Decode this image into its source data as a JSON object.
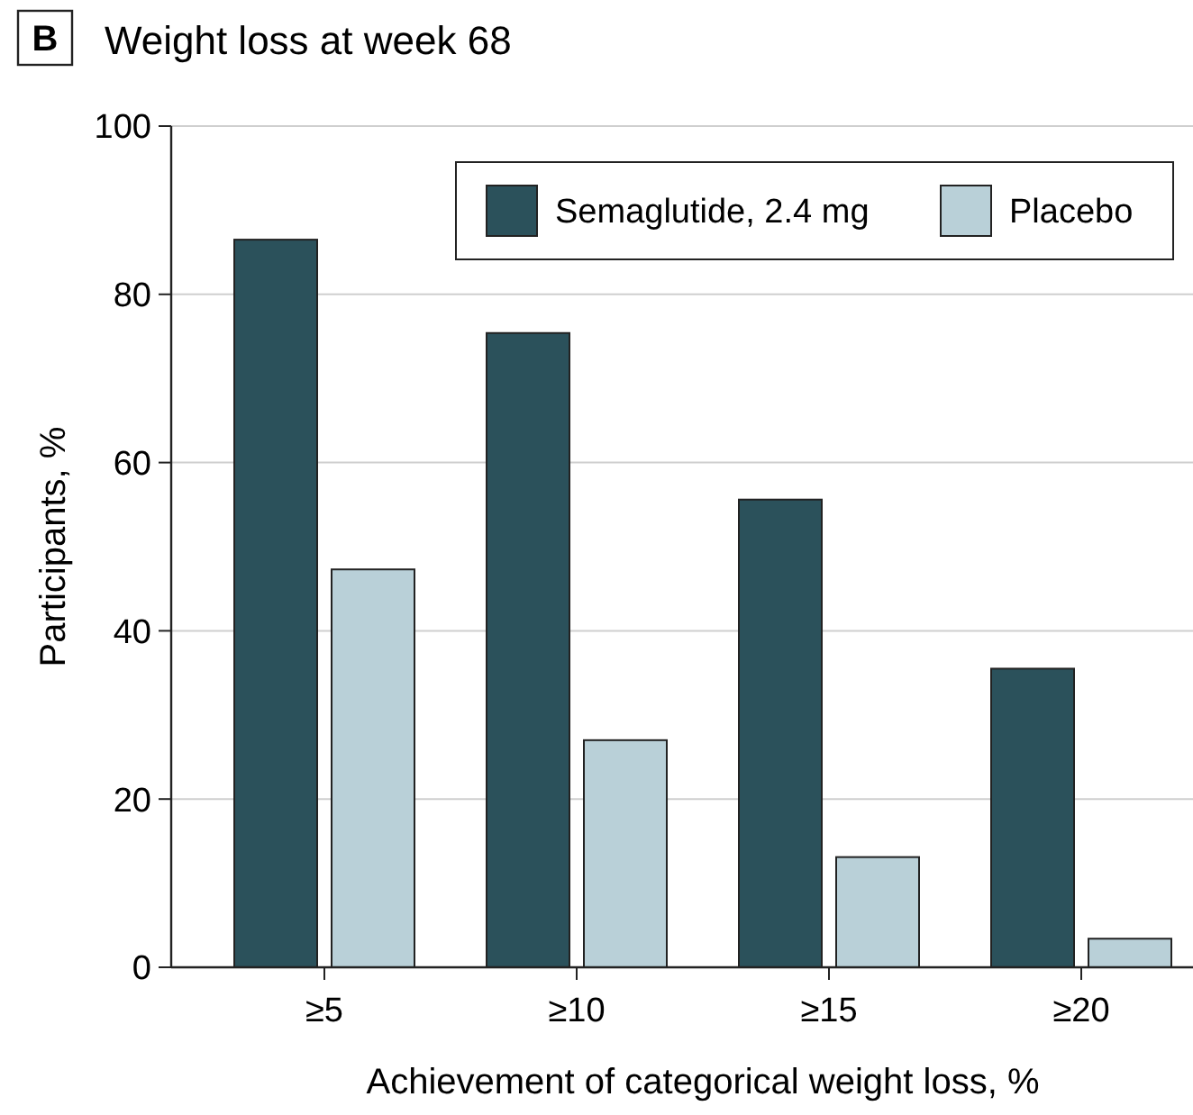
{
  "chart_data": {
    "type": "bar",
    "title": "Weight loss at week 68",
    "annotations": [
      "B"
    ],
    "xlabel": "Achievement of categorical weight loss, %",
    "ylabel": "Participants, %",
    "categories": [
      "≥5",
      "≥10",
      "≥15",
      "≥20"
    ],
    "series": [
      {
        "name": "Semaglutide, 2.4 mg",
        "color": "#2b515b",
        "values": [
          86.5,
          75.4,
          55.6,
          35.5
        ]
      },
      {
        "name": "Placebo",
        "color": "#b9d0d8",
        "values": [
          47.3,
          27,
          13.1,
          3.4
        ]
      }
    ],
    "ylim": [
      0,
      100
    ],
    "yticks": [
      0,
      20,
      40,
      60,
      80,
      100
    ],
    "grid": "y",
    "legend": "top right"
  }
}
